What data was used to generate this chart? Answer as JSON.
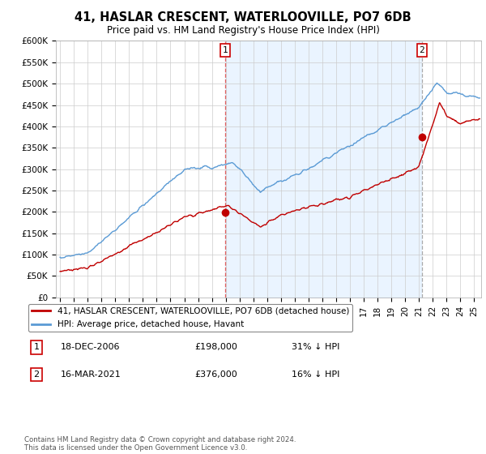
{
  "title": "41, HASLAR CRESCENT, WATERLOOVILLE, PO7 6DB",
  "subtitle": "Price paid vs. HM Land Registry's House Price Index (HPI)",
  "title_fontsize": 10.5,
  "subtitle_fontsize": 8.5,
  "ylim": [
    0,
    600000
  ],
  "yticks": [
    0,
    50000,
    100000,
    150000,
    200000,
    250000,
    300000,
    350000,
    400000,
    450000,
    500000,
    550000,
    600000
  ],
  "ytick_labels": [
    "£0",
    "£50K",
    "£100K",
    "£150K",
    "£200K",
    "£250K",
    "£300K",
    "£350K",
    "£400K",
    "£450K",
    "£500K",
    "£550K",
    "£600K"
  ],
  "hpi_color": "#5b9bd5",
  "price_color": "#c00000",
  "marker_color": "#c00000",
  "vline1_color": "#e06060",
  "vline2_color": "#aaaaaa",
  "fill_color": "#ddeeff",
  "legend_label_price": "41, HASLAR CRESCENT, WATERLOOVILLE, PO7 6DB (detached house)",
  "legend_label_hpi": "HPI: Average price, detached house, Havant",
  "sale1_label": "1",
  "sale1_date": "18-DEC-2006",
  "sale1_price": "£198,000",
  "sale1_hpi": "31% ↓ HPI",
  "sale2_label": "2",
  "sale2_date": "16-MAR-2021",
  "sale2_price": "£376,000",
  "sale2_hpi": "16% ↓ HPI",
  "footnote": "Contains HM Land Registry data © Crown copyright and database right 2024.\nThis data is licensed under the Open Government Licence v3.0.",
  "background_color": "#ffffff",
  "plot_bg_color": "#ffffff",
  "grid_color": "#cccccc",
  "xlim_start": 1994.7,
  "xlim_end": 2025.5,
  "sale1_x": 2006.96,
  "sale1_y": 198000,
  "sale2_x": 2021.21,
  "sale2_y": 376000
}
